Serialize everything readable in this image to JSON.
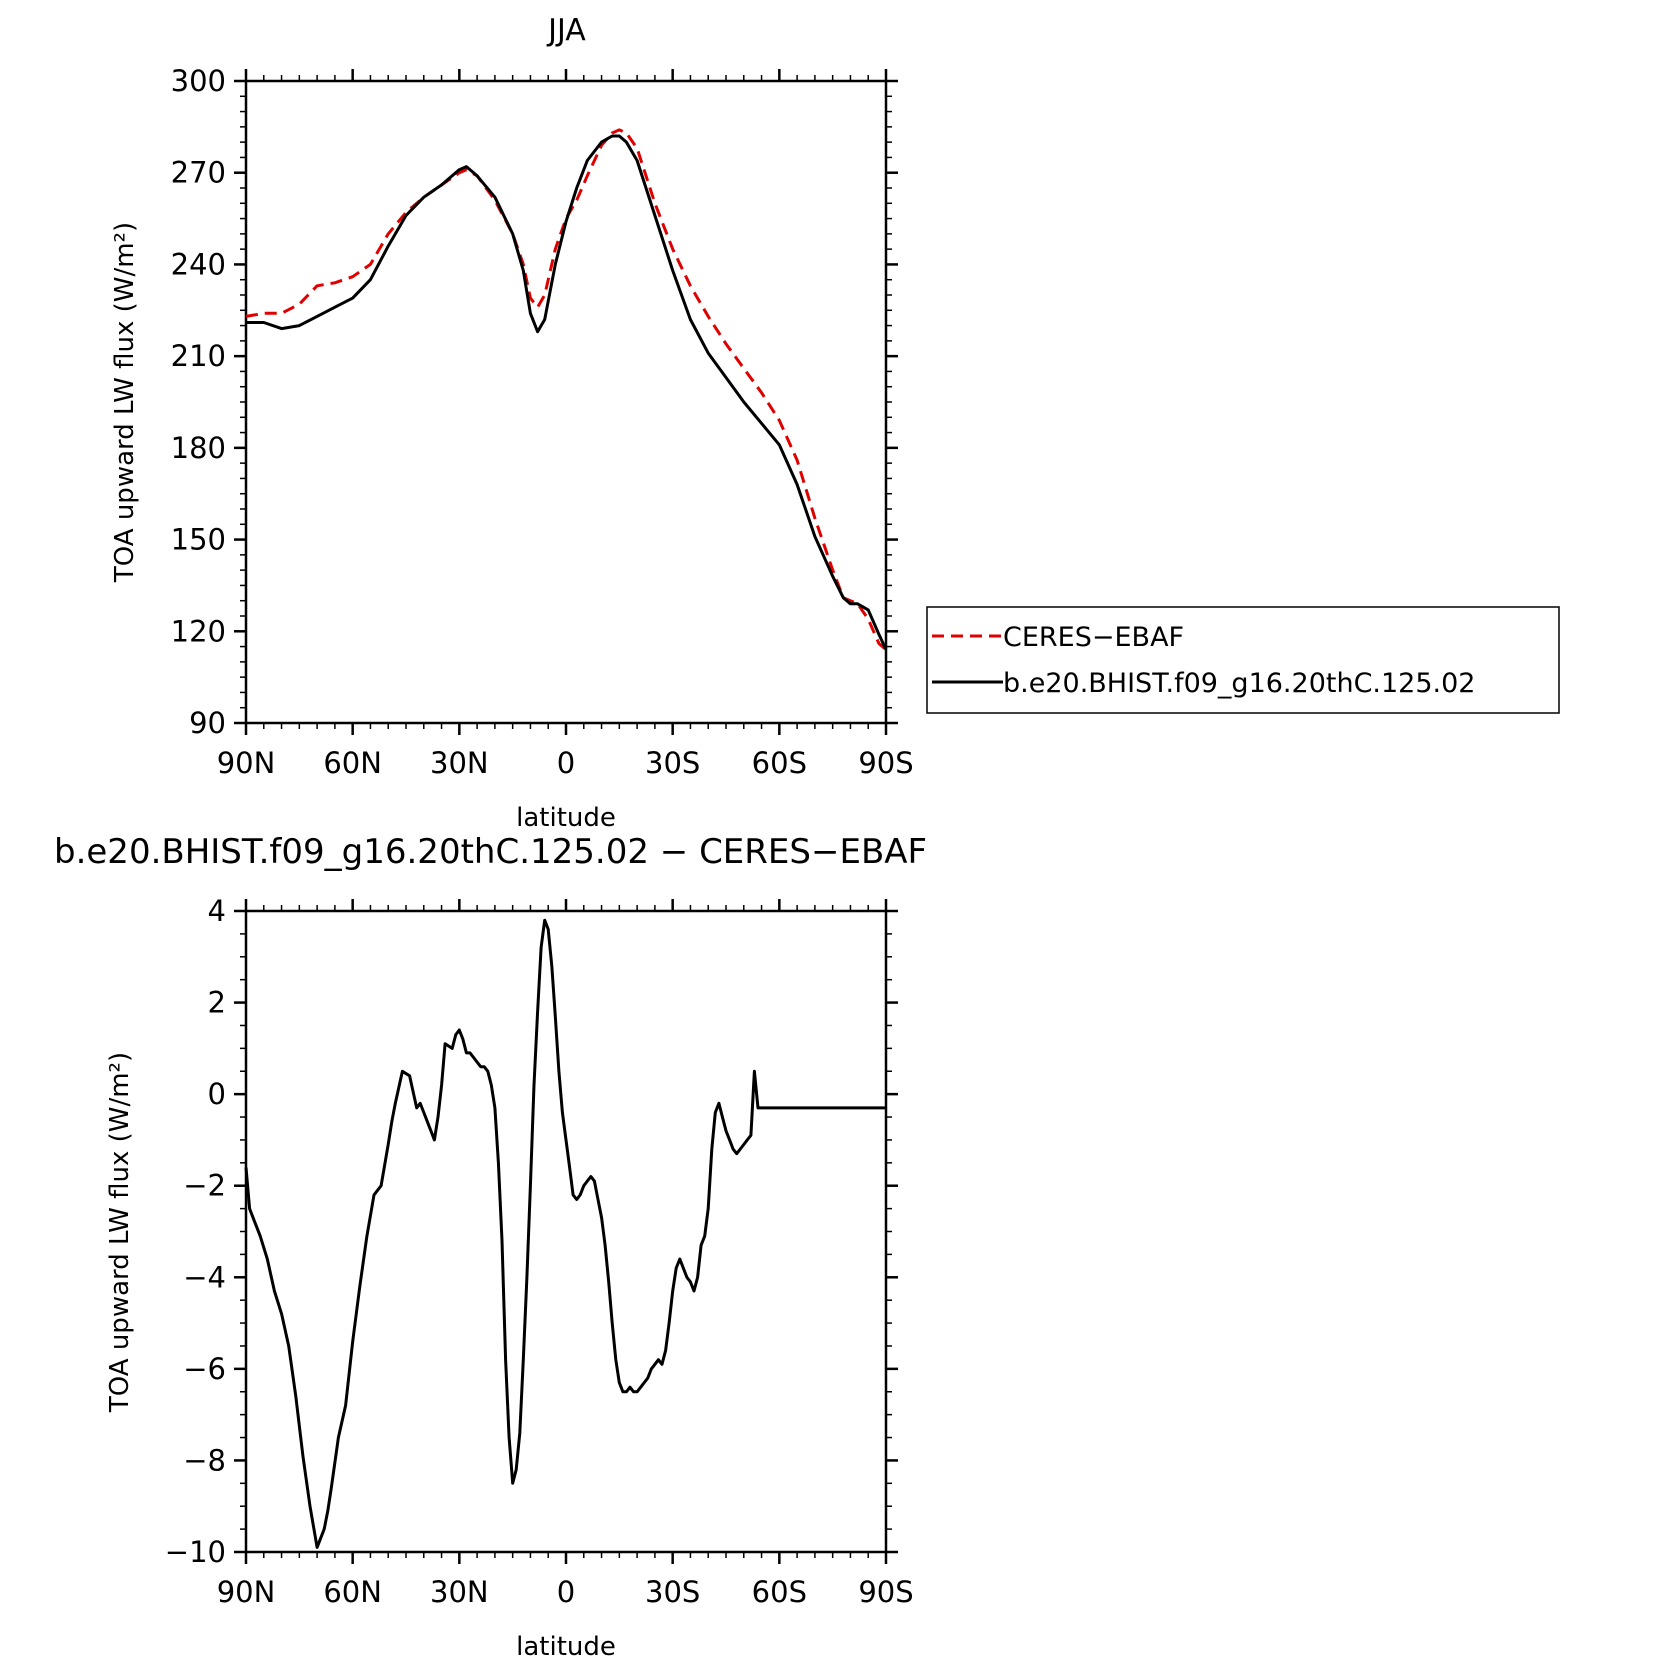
{
  "colors": {
    "ceres": "#e00000",
    "model": "#000000",
    "axis": "#000000"
  },
  "chart_data": [
    {
      "type": "line",
      "title": "JJA",
      "xlabel": "latitude",
      "ylabel": "TOA upward LW flux (W/m²)",
      "xlim": [
        90,
        -90
      ],
      "ylim": [
        90,
        300
      ],
      "x_tick_values": [
        90,
        60,
        30,
        0,
        -30,
        -60,
        -90
      ],
      "x_tick_labels": [
        "90N",
        "60N",
        "30N",
        "0",
        "30S",
        "60S",
        "90S"
      ],
      "y_tick_values": [
        90,
        120,
        150,
        180,
        210,
        240,
        270,
        300
      ],
      "y_tick_labels": [
        "90",
        "120",
        "150",
        "180",
        "210",
        "240",
        "270",
        "300"
      ],
      "legend": {
        "placement": "right",
        "entries": [
          {
            "label": "CERES−EBAF",
            "style": "dashed",
            "color": "#e00000"
          },
          {
            "label": "b.e20.BHIST.f09_g16.20thC.125.02",
            "style": "solid",
            "color": "#000000"
          }
        ]
      },
      "series": [
        {
          "name": "CERES−EBAF",
          "style": "dashed",
          "x": [
            90,
            85,
            80,
            75,
            70,
            65,
            60,
            55,
            50,
            45,
            40,
            35,
            30,
            28,
            25,
            20,
            15,
            12,
            10,
            8,
            6,
            3,
            0,
            -3,
            -6,
            -10,
            -13,
            -15,
            -17,
            -20,
            -25,
            -30,
            -35,
            -40,
            -45,
            -50,
            -55,
            -60,
            -65,
            -70,
            -75,
            -78,
            -80,
            -82,
            -85,
            -88,
            -90
          ],
          "y": [
            223,
            224,
            224,
            227,
            233,
            234,
            236,
            240,
            250,
            257,
            262,
            266,
            270,
            271,
            269,
            261,
            250,
            240,
            229,
            226,
            230,
            245,
            255,
            261,
            269,
            279,
            283,
            284,
            283,
            278,
            260,
            245,
            233,
            223,
            214,
            206,
            198,
            189,
            176,
            157,
            140,
            131,
            130,
            129,
            124,
            116,
            114
          ]
        },
        {
          "name": "b.e20.BHIST.f09_g16.20thC.125.02",
          "style": "solid",
          "x": [
            90,
            85,
            80,
            75,
            70,
            65,
            60,
            55,
            50,
            45,
            40,
            35,
            30,
            28,
            25,
            20,
            15,
            12,
            10,
            8,
            6,
            3,
            0,
            -3,
            -6,
            -10,
            -13,
            -15,
            -17,
            -20,
            -25,
            -30,
            -35,
            -40,
            -45,
            -50,
            -55,
            -60,
            -65,
            -70,
            -75,
            -78,
            -80,
            -82,
            -85,
            -88,
            -90
          ],
          "y": [
            221,
            221,
            219,
            220,
            223,
            226,
            229,
            235,
            246,
            256,
            262,
            266,
            271,
            272,
            269,
            262,
            250,
            238,
            224,
            218,
            222,
            240,
            254,
            265,
            274,
            280,
            282,
            282,
            280,
            274,
            256,
            238,
            222,
            211,
            203,
            195,
            188,
            181,
            168,
            151,
            138,
            131,
            129,
            129,
            127,
            119,
            114
          ]
        }
      ]
    },
    {
      "type": "line",
      "title": "b.e20.BHIST.f09_g16.20thC.125.02 − CERES−EBAF",
      "xlabel": "latitude",
      "ylabel": "TOA upward LW flux (W/m²)",
      "xlim": [
        90,
        -90
      ],
      "ylim": [
        -10,
        4
      ],
      "x_tick_values": [
        90,
        60,
        30,
        0,
        -30,
        -60,
        -90
      ],
      "x_tick_labels": [
        "90N",
        "60N",
        "30N",
        "0",
        "30S",
        "60S",
        "90S"
      ],
      "y_tick_values": [
        4,
        2,
        0,
        -2,
        -4,
        -6,
        -8,
        -10
      ],
      "y_tick_labels": [
        "4",
        "2",
        "0",
        "−2",
        "−4",
        "−6",
        "−8",
        "−10"
      ],
      "series": [
        {
          "style": "solid",
          "x": [
            90,
            89,
            88,
            86,
            84,
            82,
            80,
            78,
            76,
            74,
            72,
            70,
            68,
            67,
            66,
            64,
            62,
            60,
            58,
            56,
            54,
            52,
            50,
            49,
            48,
            46,
            44,
            42,
            41,
            40,
            39,
            38,
            37,
            36,
            35,
            34,
            32,
            31,
            30,
            29,
            28,
            27,
            26,
            25,
            24,
            23,
            22,
            21,
            20,
            19,
            18,
            17,
            16,
            15,
            14,
            13,
            12,
            11,
            10,
            9,
            8,
            7,
            6,
            5,
            4,
            3,
            2,
            1,
            0,
            -1,
            -2,
            -3,
            -4,
            -5,
            -6,
            -7,
            -8,
            -9,
            -10,
            -11,
            -12,
            -13,
            -14,
            -15,
            -16,
            -17,
            -18,
            -19,
            -20,
            -21,
            -22,
            -23,
            -24,
            -25,
            -26,
            -27,
            -28,
            -29,
            -30,
            -31,
            -32,
            -33,
            -34,
            -35,
            -36,
            -37,
            -38,
            -39,
            -40,
            -41,
            -42,
            -43,
            -44,
            -45,
            -46,
            -47,
            -48,
            -49,
            -50,
            -51,
            -52,
            -53,
            -54,
            -55,
            -56,
            -57,
            -58,
            -59,
            -60,
            -61,
            -62,
            -63,
            -64,
            -65,
            -66,
            -67,
            -68,
            -69,
            -70,
            -71,
            -72,
            -73,
            -74,
            -75,
            -76,
            -77,
            -78,
            -79,
            -80,
            -81,
            -82,
            -83,
            -84,
            -85,
            -86,
            -87,
            -88,
            -89,
            -90
          ],
          "y": [
            -1.6,
            -2.5,
            -2.7,
            -3.1,
            -3.6,
            -4.3,
            -4.8,
            -5.5,
            -6.6,
            -7.9,
            -9.0,
            -9.9,
            -9.5,
            -9.1,
            -8.6,
            -7.5,
            -6.8,
            -5.4,
            -4.2,
            -3.1,
            -2.2,
            -2.0,
            -1.1,
            -0.6,
            -0.2,
            0.5,
            0.4,
            -0.3,
            -0.2,
            -0.4,
            -0.6,
            -0.8,
            -1.0,
            -0.5,
            0.2,
            1.1,
            1.0,
            1.3,
            1.4,
            1.2,
            0.9,
            0.9,
            0.8,
            0.7,
            0.6,
            0.6,
            0.5,
            0.2,
            -0.3,
            -1.5,
            -3.2,
            -5.8,
            -7.5,
            -8.5,
            -8.2,
            -7.4,
            -5.8,
            -4.0,
            -2.0,
            0.2,
            1.8,
            3.2,
            3.8,
            3.6,
            2.8,
            1.7,
            0.5,
            -0.4,
            -1.0,
            -1.6,
            -2.2,
            -2.3,
            -2.2,
            -2.0,
            -1.9,
            -1.8,
            -1.9,
            -2.3,
            -2.7,
            -3.3,
            -4.1,
            -5.0,
            -5.8,
            -6.3,
            -6.5,
            -6.5,
            -6.4,
            -6.5,
            -6.5,
            -6.4,
            -6.3,
            -6.2,
            -6.0,
            -5.9,
            -5.8,
            -5.9,
            -5.6,
            -5.0,
            -4.3,
            -3.8,
            -3.6,
            -3.8,
            -4.0,
            -4.1,
            -4.3,
            -4.0,
            -3.3,
            -3.1,
            -2.5,
            -1.2,
            -0.4,
            -0.2,
            -0.5,
            -0.8,
            -1.0,
            -1.2,
            -1.3,
            -1.2,
            -1.1,
            -1.0,
            -0.9,
            0.5,
            -0.3,
            -0.3,
            -0.3,
            -0.3,
            -0.3,
            -0.3,
            -0.3,
            -0.3,
            -0.3,
            -0.3,
            -0.3,
            -0.3,
            -0.3,
            -0.3,
            -0.3,
            -0.3,
            -0.3,
            -0.3,
            -0.3,
            -0.3,
            -0.3,
            -0.3,
            -0.3,
            -0.3,
            -0.3,
            -0.3,
            -0.3,
            -0.3,
            -0.3,
            -0.3,
            -0.3,
            -0.3,
            -0.3,
            -0.3,
            -0.3,
            -0.3,
            -0.3
          ]
        }
      ]
    }
  ]
}
